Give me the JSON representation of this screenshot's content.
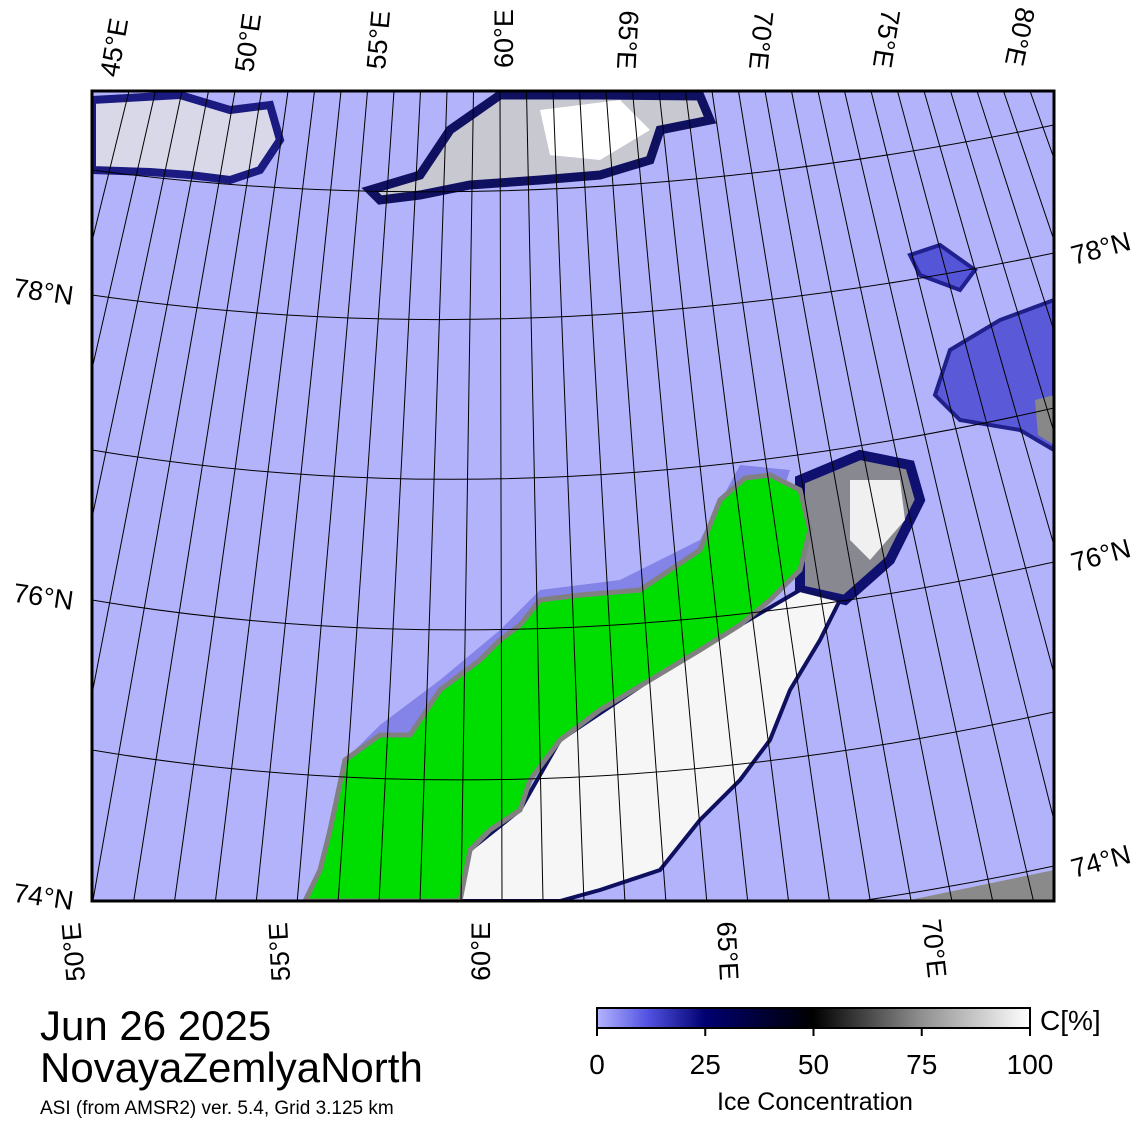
{
  "map": {
    "top_lon_labels": [
      "45°E",
      "50°E",
      "55°E",
      "60°E",
      "65°E",
      "70°E",
      "75°E",
      "80°E"
    ],
    "bottom_lon_labels": [
      "50°E",
      "55°E",
      "60°E",
      "65°E",
      "70°E"
    ],
    "left_lat_labels": [
      "78°N",
      "76°N",
      "74°N"
    ],
    "right_lat_labels": [
      "78°N",
      "76°N",
      "74°N"
    ]
  },
  "caption": {
    "date": "Jun 26 2025",
    "region": "NovayaZemlyaNorth",
    "source": "ASI (from AMSR2) ver. 5.4,  Grid 3.125 km"
  },
  "colorbar": {
    "ticks": [
      0,
      25,
      50,
      75,
      100
    ],
    "unit": "C[%]",
    "label": "Ice Concentration"
  }
}
